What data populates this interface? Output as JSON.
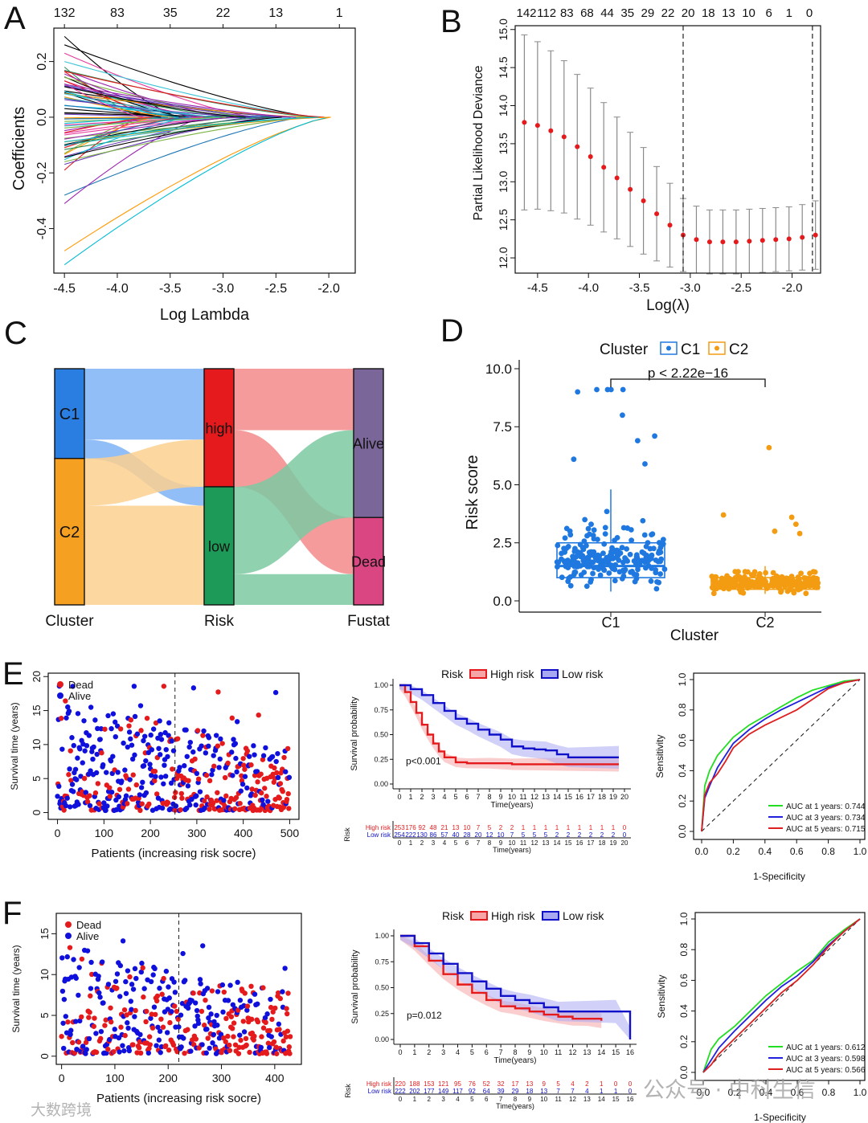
{
  "panels": {
    "a": {
      "letter": "A"
    },
    "b": {
      "letter": "B"
    },
    "c": {
      "letter": "C"
    },
    "d": {
      "letter": "D"
    },
    "e": {
      "letter": "E"
    },
    "f": {
      "letter": "F"
    }
  },
  "watermark": {
    "left_text": "大数跨境",
    "right_text": "公众号 · 中科生信"
  },
  "chart_data": [
    {
      "id": "A",
      "type": "line",
      "xlabel": "Log Lambda",
      "ylabel": "Coefficients",
      "xlim": [
        -4.6,
        -1.75
      ],
      "ylim": [
        -0.56,
        0.32
      ],
      "x_ticks": [
        "-4.5",
        "-4.0",
        "-3.5",
        "-3.0",
        "-2.5",
        "-2.0"
      ],
      "y_ticks": [
        "-0.4",
        "-0.2",
        "0.0",
        "0.2"
      ],
      "top_axis_labels": [
        "132",
        "83",
        "35",
        "22",
        "13",
        "1"
      ],
      "note": "coefficient paths for 132 features shrinking to 0 as Log Lambda increases"
    },
    {
      "id": "B",
      "type": "scatter",
      "xlabel": "Log(λ)",
      "ylabel": "Partial Likelihood Deviance",
      "xlim": [
        -4.72,
        -1.72
      ],
      "ylim": [
        11.8,
        15.05
      ],
      "x_ticks": [
        "-4.5",
        "-4.0",
        "-3.5",
        "-3.0",
        "-2.5",
        "-2.0"
      ],
      "y_ticks": [
        "12.0",
        "12.5",
        "13.0",
        "13.5",
        "14.0",
        "14.5",
        "15.0"
      ],
      "top_axis_labels": [
        "142",
        "112",
        "83",
        "68",
        "44",
        "35",
        "29",
        "22",
        "20",
        "18",
        "13",
        "10",
        "6",
        "1",
        "0"
      ],
      "x": [
        -4.63,
        -4.5,
        -4.37,
        -4.24,
        -4.11,
        -3.98,
        -3.85,
        -3.72,
        -3.59,
        -3.46,
        -3.33,
        -3.2,
        -3.07,
        -2.94,
        -2.81,
        -2.68,
        -2.55,
        -2.42,
        -2.29,
        -2.16,
        -2.03,
        -1.9,
        -1.77
      ],
      "y": [
        13.78,
        13.74,
        13.67,
        13.59,
        13.46,
        13.33,
        13.19,
        13.05,
        12.9,
        12.75,
        12.58,
        12.43,
        12.3,
        12.24,
        12.21,
        12.21,
        12.21,
        12.22,
        12.23,
        12.24,
        12.25,
        12.27,
        12.3
      ],
      "err": [
        1.15,
        1.1,
        1.05,
        1.0,
        0.95,
        0.9,
        0.85,
        0.8,
        0.75,
        0.7,
        0.62,
        0.55,
        0.48,
        0.44,
        0.42,
        0.42,
        0.42,
        0.42,
        0.42,
        0.42,
        0.42,
        0.43,
        0.45
      ],
      "vlines": [
        -3.07,
        -1.8
      ]
    },
    {
      "id": "C",
      "type": "sankey",
      "axes": [
        "Cluster",
        "Risk",
        "Fustat"
      ],
      "nodes": [
        {
          "axis": 0,
          "label": "C1",
          "color": "#2a7de1",
          "value": 38
        },
        {
          "axis": 0,
          "label": "C2",
          "color": "#f5a020",
          "value": 62
        },
        {
          "axis": 1,
          "label": "high",
          "color": "#e41a1c",
          "value": 50
        },
        {
          "axis": 1,
          "label": "low",
          "color": "#1e9a58",
          "value": 50
        },
        {
          "axis": 2,
          "label": "Alive",
          "color": "#7b6699",
          "value": 63
        },
        {
          "axis": 2,
          "label": "Dead",
          "color": "#d94682",
          "value": 37
        }
      ],
      "flows": [
        {
          "from": "C1",
          "to": "high",
          "value": 30,
          "color": "#7fb3f7"
        },
        {
          "from": "C1",
          "to": "low",
          "value": 8,
          "color": "#7fb3f7"
        },
        {
          "from": "C2",
          "to": "high",
          "value": 20,
          "color": "#fcd08f"
        },
        {
          "from": "C2",
          "to": "low",
          "value": 42,
          "color": "#fcd08f"
        },
        {
          "from": "high",
          "to": "Alive",
          "value": 26,
          "color": "#f38a8a"
        },
        {
          "from": "high",
          "to": "Dead",
          "value": 24,
          "color": "#f38a8a"
        },
        {
          "from": "low",
          "to": "Alive",
          "value": 37,
          "color": "#7dc9a2"
        },
        {
          "from": "low",
          "to": "Dead",
          "value": 13,
          "color": "#7dc9a2"
        }
      ]
    },
    {
      "id": "D",
      "type": "box",
      "xlabel": "Cluster",
      "ylabel": "Risk score",
      "legend_title": "Cluster",
      "categories": [
        "C1",
        "C2"
      ],
      "colors": [
        "#1f78e0",
        "#f39c12"
      ],
      "ylim": [
        0,
        10
      ],
      "y_ticks": [
        "0.0",
        "2.5",
        "5.0",
        "7.5",
        "10.0"
      ],
      "annotation": "p < 2.22e−16",
      "boxes": [
        {
          "name": "C1",
          "q1": 1.0,
          "median": 1.5,
          "q3": 2.5,
          "whisker_low": 0.4,
          "whisker_high": 4.8
        },
        {
          "name": "C2",
          "q1": 0.5,
          "median": 0.7,
          "q3": 1.0,
          "whisker_low": 0.3,
          "whisker_high": 1.5
        }
      ],
      "outliers": {
        "C1": [
          9.1,
          9.1,
          9.1,
          9.1,
          9.0,
          8.0,
          7.1,
          6.9,
          6.1,
          5.9
        ],
        "C2": [
          6.6,
          3.7,
          3.6,
          3.3,
          3.0,
          2.9
        ]
      }
    },
    {
      "id": "E-left",
      "type": "scatter",
      "xlabel": "Patients (increasing risk socre)",
      "ylabel": "Survival time (years)",
      "xlim": [
        -20,
        520
      ],
      "ylim": [
        -1,
        20.5
      ],
      "x_ticks": [
        "0",
        "100",
        "200",
        "300",
        "400",
        "500"
      ],
      "y_ticks": [
        "0",
        "5",
        "10",
        "15",
        "20"
      ],
      "series": [
        {
          "name": "Dead",
          "color": "#e41a1c"
        },
        {
          "name": "Alive",
          "color": "#1010dd"
        }
      ],
      "cutoff_x": 253
    },
    {
      "id": "E-middle",
      "type": "line",
      "legend_title": "Risk",
      "xlabel": "Time(years)",
      "ylabel": "Survival probability",
      "xlim": [
        0,
        20
      ],
      "ylim": [
        0,
        1
      ],
      "x_ticks": [
        "0",
        "1",
        "2",
        "3",
        "4",
        "5",
        "6",
        "7",
        "8",
        "9",
        "10",
        "11",
        "12",
        "13",
        "14",
        "15",
        "16",
        "17",
        "18",
        "19",
        "20"
      ],
      "y_ticks": [
        "0.00",
        "0.25",
        "0.50",
        "0.75",
        "1.00"
      ],
      "annotation": "p<0.001",
      "series": [
        {
          "name": "High risk",
          "color": "#e41a1c",
          "x": [
            0,
            0.5,
            1,
            1.5,
            2,
            2.5,
            3,
            3.5,
            4,
            5,
            6,
            8,
            10,
            14,
            19.5
          ],
          "y": [
            1.0,
            0.93,
            0.83,
            0.72,
            0.6,
            0.5,
            0.41,
            0.33,
            0.27,
            0.22,
            0.21,
            0.21,
            0.2,
            0.2,
            0.2
          ]
        },
        {
          "name": "Low risk",
          "color": "#1010c8",
          "x": [
            0,
            1,
            2,
            3,
            4,
            5,
            6,
            7,
            8,
            9,
            10,
            11,
            12,
            13,
            14,
            15,
            19.5
          ],
          "y": [
            1.0,
            0.96,
            0.9,
            0.82,
            0.74,
            0.66,
            0.61,
            0.55,
            0.5,
            0.45,
            0.38,
            0.36,
            0.35,
            0.34,
            0.3,
            0.27,
            0.27
          ]
        }
      ],
      "risk_table": {
        "title": "Risk",
        "rows": [
          {
            "name": "High risk",
            "color": "#e41a1c",
            "values": [
              "253",
              "176",
              "92",
              "48",
              "21",
              "13",
              "10",
              "7",
              "5",
              "2",
              "2",
              "1",
              "1",
              "1",
              "1",
              "1",
              "1",
              "1",
              "1",
              "1",
              "0"
            ]
          },
          {
            "name": "Low risk",
            "color": "#1010c8",
            "values": [
              "254",
              "222",
              "130",
              "86",
              "57",
              "40",
              "28",
              "20",
              "12",
              "10",
              "7",
              "5",
              "5",
              "5",
              "2",
              "2",
              "2",
              "2",
              "2",
              "2",
              "0"
            ]
          }
        ]
      }
    },
    {
      "id": "E-right",
      "type": "line",
      "xlabel": "1-Specificity",
      "ylabel": "Sensitivity",
      "xlim": [
        0,
        1
      ],
      "ylim": [
        0,
        1
      ],
      "x_ticks": [
        "0.0",
        "0.2",
        "0.4",
        "0.6",
        "0.8",
        "1.0"
      ],
      "y_ticks": [
        "0.0",
        "0.2",
        "0.4",
        "0.6",
        "0.8",
        "1.0"
      ],
      "series": [
        {
          "name": "AUC at 1 years: 0.744",
          "color": "#22dd22",
          "x": [
            0,
            0.02,
            0.05,
            0.1,
            0.15,
            0.2,
            0.3,
            0.4,
            0.5,
            0.6,
            0.7,
            0.8,
            0.9,
            1
          ],
          "y": [
            0,
            0.3,
            0.4,
            0.5,
            0.56,
            0.62,
            0.7,
            0.76,
            0.82,
            0.88,
            0.93,
            0.96,
            0.99,
            1
          ]
        },
        {
          "name": "AUC at 3 years: 0.734",
          "color": "#2020dd",
          "x": [
            0,
            0.02,
            0.05,
            0.1,
            0.15,
            0.2,
            0.3,
            0.4,
            0.5,
            0.6,
            0.7,
            0.8,
            0.9,
            1
          ],
          "y": [
            0,
            0.22,
            0.3,
            0.42,
            0.5,
            0.58,
            0.67,
            0.74,
            0.8,
            0.85,
            0.9,
            0.95,
            0.98,
            1
          ]
        },
        {
          "name": "AUC at 5 years: 0.715",
          "color": "#dd2020",
          "x": [
            0,
            0.02,
            0.05,
            0.1,
            0.15,
            0.2,
            0.3,
            0.4,
            0.5,
            0.6,
            0.7,
            0.8,
            0.9,
            1
          ],
          "y": [
            0,
            0.24,
            0.32,
            0.38,
            0.46,
            0.55,
            0.64,
            0.7,
            0.75,
            0.8,
            0.87,
            0.94,
            0.98,
            1
          ]
        }
      ]
    },
    {
      "id": "F-left",
      "type": "scatter",
      "xlabel": "Patients (increasing risk socre)",
      "ylabel": "Survival time (years)",
      "xlim": [
        -10,
        450
      ],
      "ylim": [
        -1,
        17.5
      ],
      "x_ticks": [
        "0",
        "100",
        "200",
        "300",
        "400"
      ],
      "y_ticks": [
        "0",
        "5",
        "10",
        "15"
      ],
      "series": [
        {
          "name": "Dead",
          "color": "#e41a1c"
        },
        {
          "name": "Alive",
          "color": "#1010dd"
        }
      ],
      "cutoff_x": 220
    },
    {
      "id": "F-middle",
      "type": "line",
      "legend_title": "Risk",
      "xlabel": "Time(years)",
      "ylabel": "Survival probability",
      "xlim": [
        0,
        16
      ],
      "ylim": [
        0,
        1
      ],
      "x_ticks": [
        "0",
        "1",
        "2",
        "3",
        "4",
        "5",
        "6",
        "7",
        "8",
        "9",
        "10",
        "11",
        "12",
        "13",
        "14",
        "15",
        "16"
      ],
      "y_ticks": [
        "0.00",
        "0.25",
        "0.50",
        "0.75",
        "1.00"
      ],
      "annotation": "p=0.012",
      "series": [
        {
          "name": "High risk",
          "color": "#e41a1c",
          "x": [
            0,
            1,
            2,
            3,
            4,
            5,
            6,
            7,
            8,
            9,
            10,
            11,
            12,
            13,
            14
          ],
          "y": [
            1.0,
            0.9,
            0.76,
            0.63,
            0.53,
            0.45,
            0.38,
            0.32,
            0.3,
            0.27,
            0.24,
            0.22,
            0.2,
            0.2,
            0.18
          ]
        },
        {
          "name": "Low risk",
          "color": "#1010c8",
          "x": [
            0,
            1,
            2,
            3,
            4,
            5,
            6,
            7,
            8,
            9,
            10,
            11,
            12,
            13,
            14,
            15,
            16
          ],
          "y": [
            1.0,
            0.93,
            0.83,
            0.73,
            0.64,
            0.56,
            0.49,
            0.42,
            0.38,
            0.35,
            0.31,
            0.27,
            0.27,
            0.27,
            0.27,
            0.27,
            0.0
          ]
        }
      ],
      "risk_table": {
        "title": "Risk",
        "rows": [
          {
            "name": "High risk",
            "color": "#e41a1c",
            "values": [
              "220",
              "188",
              "153",
              "121",
              "95",
              "76",
              "52",
              "32",
              "17",
              "13",
              "9",
              "5",
              "4",
              "2",
              "1",
              "0",
              "0"
            ]
          },
          {
            "name": "Low risk",
            "color": "#1010c8",
            "values": [
              "222",
              "202",
              "177",
              "149",
              "117",
              "92",
              "64",
              "39",
              "29",
              "18",
              "13",
              "7",
              "7",
              "4",
              "1",
              "1",
              "0"
            ]
          }
        ]
      }
    },
    {
      "id": "F-right",
      "type": "line",
      "xlabel": "1-Specificity",
      "ylabel": "Sensitivity",
      "xlim": [
        0,
        1
      ],
      "ylim": [
        0,
        1
      ],
      "x_ticks": [
        "0.0",
        "0.2",
        "0.4",
        "0.6",
        "0.8",
        "1.0"
      ],
      "y_ticks": [
        "0.0",
        "0.2",
        "0.4",
        "0.6",
        "0.8",
        "1.0"
      ],
      "series": [
        {
          "name": "AUC at 1 years: 0.612",
          "color": "#22dd22",
          "x": [
            0,
            0.05,
            0.1,
            0.2,
            0.3,
            0.4,
            0.5,
            0.6,
            0.7,
            0.8,
            0.9,
            1
          ],
          "y": [
            0,
            0.15,
            0.22,
            0.3,
            0.4,
            0.5,
            0.58,
            0.66,
            0.73,
            0.85,
            0.93,
            1
          ]
        },
        {
          "name": "AUC at 3 years: 0.598",
          "color": "#2020dd",
          "x": [
            0,
            0.05,
            0.1,
            0.2,
            0.3,
            0.4,
            0.5,
            0.6,
            0.7,
            0.8,
            0.9,
            1
          ],
          "y": [
            0,
            0.08,
            0.16,
            0.27,
            0.37,
            0.47,
            0.56,
            0.63,
            0.72,
            0.83,
            0.92,
            1
          ]
        },
        {
          "name": "AUC at 5 years: 0.566",
          "color": "#dd2020",
          "x": [
            0,
            0.05,
            0.1,
            0.2,
            0.3,
            0.4,
            0.5,
            0.6,
            0.7,
            0.8,
            0.9,
            1
          ],
          "y": [
            0,
            0.05,
            0.12,
            0.22,
            0.32,
            0.42,
            0.52,
            0.6,
            0.7,
            0.82,
            0.92,
            1
          ]
        }
      ]
    }
  ]
}
